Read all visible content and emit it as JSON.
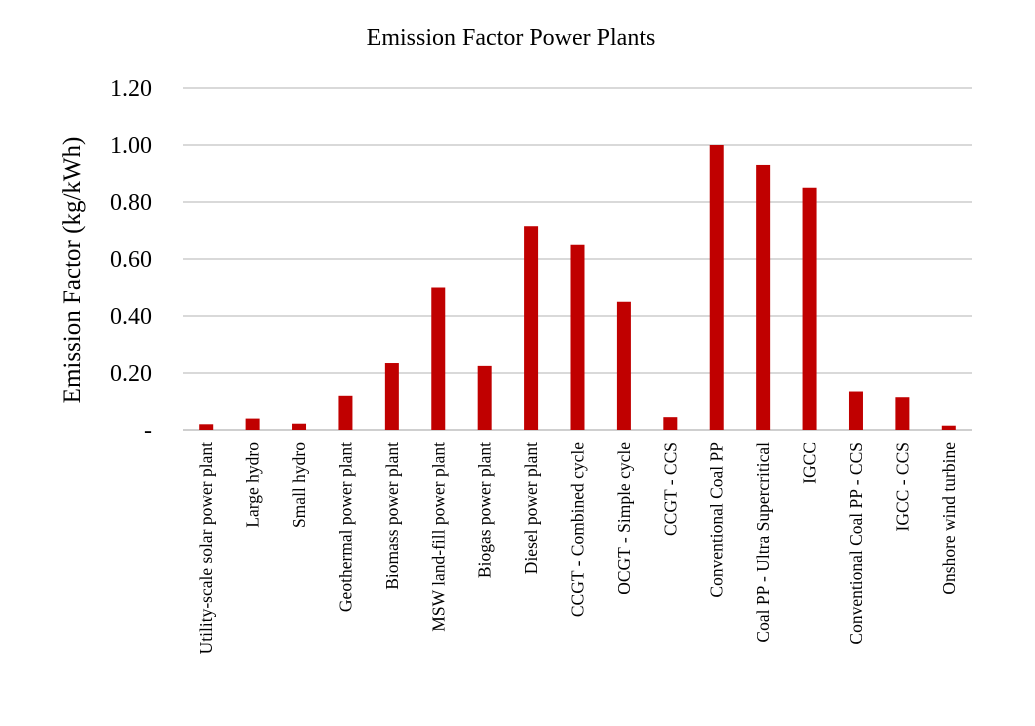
{
  "chart_data": {
    "type": "bar",
    "title": "Emission Factor Power Plants",
    "xlabel": "",
    "ylabel": "Emission Factor (kg/kWh)",
    "ylim": [
      0,
      1.2
    ],
    "yticks": [
      0,
      0.2,
      0.4,
      0.6,
      0.8,
      1.0,
      1.2
    ],
    "ytick_labels": [
      "-",
      "0.20",
      "0.40",
      "0.60",
      "0.80",
      "1.00",
      "1.20"
    ],
    "grid": true,
    "legend": "none",
    "bar_color": "#c00000",
    "categories": [
      "Utility-scale solar power plant",
      "Large hydro",
      "Small hydro",
      "Geothermal power plant",
      "Biomass power plant",
      "MSW land-fill power plant",
      "Biogas power plant",
      "Diesel power plant",
      "CCGT - Combined cycle",
      "OCGT - Simple cycle",
      "CCGT - CCS",
      "Conventional Coal PP",
      "Coal PP - Ultra Supercritical",
      "IGCC",
      "Conventional Coal PP - CCS",
      "IGCC - CCS",
      "Onshore wind turbine"
    ],
    "values": [
      0.02,
      0.04,
      0.022,
      0.12,
      0.235,
      0.5,
      0.225,
      0.715,
      0.65,
      0.45,
      0.045,
      1.0,
      0.93,
      0.85,
      0.135,
      0.115,
      0.015
    ]
  }
}
